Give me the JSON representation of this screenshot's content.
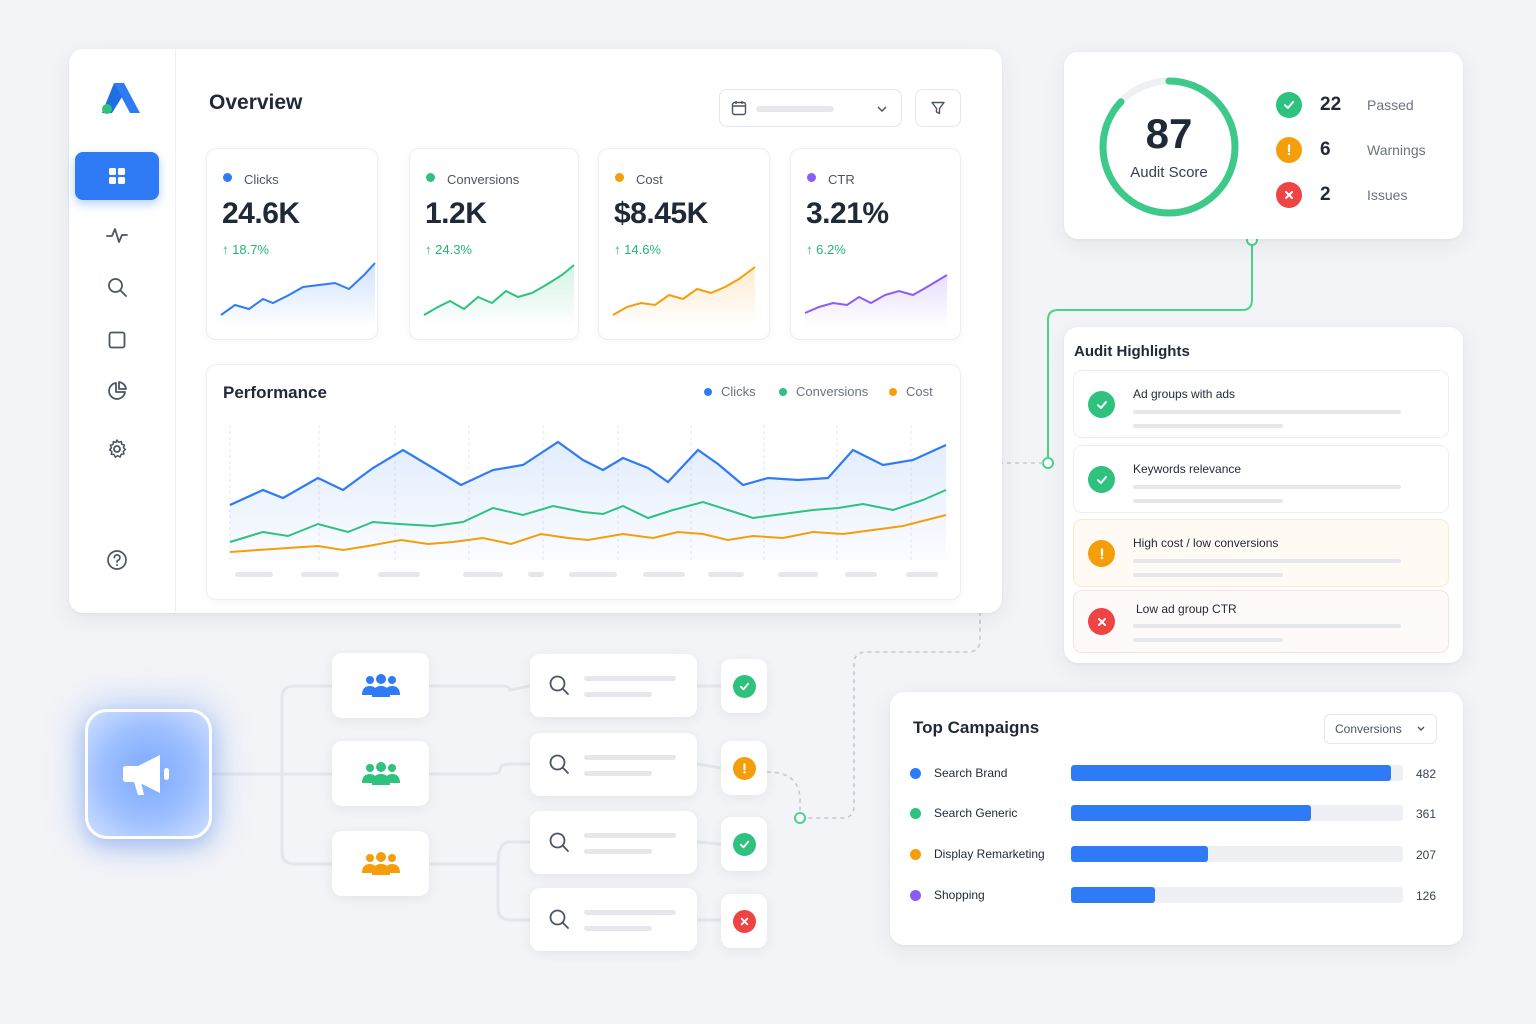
{
  "overview": {
    "title": "Overview",
    "metrics": [
      {
        "label": "Clicks",
        "value": "24.6K",
        "change": "18.7%",
        "color": "#2f7bf5"
      },
      {
        "label": "Conversions",
        "value": "1.2K",
        "change": "24.3%",
        "color": "#2ec27e"
      },
      {
        "label": "Cost",
        "value": "$8.45K",
        "change": "14.6%",
        "color": "#f59e0b"
      },
      {
        "label": "CTR",
        "value": "3.21%",
        "change": "6.2%",
        "color": "#8b5cf6"
      }
    ]
  },
  "performance": {
    "title": "Performance",
    "legend": [
      {
        "label": "Clicks",
        "color": "#2f7bf5"
      },
      {
        "label": "Conversions",
        "color": "#2ec27e"
      },
      {
        "label": "Cost",
        "color": "#f59e0b"
      }
    ]
  },
  "audit_score": {
    "score": "87",
    "label": "Audit Score",
    "score_fraction": 0.87,
    "stats": [
      {
        "count": "22",
        "label": "Passed",
        "status": "pass",
        "color": "#2ec27e"
      },
      {
        "count": "6",
        "label": "Warnings",
        "status": "warn",
        "color": "#f59e0b"
      },
      {
        "count": "2",
        "label": "Issues",
        "status": "error",
        "color": "#ef4444"
      }
    ]
  },
  "audit_highlights": {
    "title": "Audit Highlights",
    "items": [
      {
        "label": "Ad groups with ads",
        "status": "pass"
      },
      {
        "label": "Keywords relevance",
        "status": "pass"
      },
      {
        "label": "High cost / low conversions",
        "status": "warn"
      },
      {
        "label": "Low ad group CTR",
        "status": "error"
      }
    ]
  },
  "top_campaigns": {
    "title": "Top Campaigns",
    "select_value": "Conversions",
    "max": 500,
    "rows": [
      {
        "name": "Search Brand",
        "value": 482,
        "value_label": "482",
        "color": "#2f7bf5"
      },
      {
        "name": "Search Generic",
        "value": 361,
        "value_label": "361",
        "color": "#2ec27e"
      },
      {
        "name": "Display Remarketing",
        "value": 207,
        "value_label": "207",
        "color": "#f59e0b"
      },
      {
        "name": "Shopping",
        "value": 126,
        "value_label": "126",
        "color": "#8b5cf6"
      }
    ]
  },
  "flow": {
    "groups": [
      {
        "icon": "users-icon",
        "color": "#2f7bf5"
      },
      {
        "icon": "users-icon",
        "color": "#2ec27e"
      },
      {
        "icon": "users-icon",
        "color": "#f59e0b"
      }
    ],
    "statuses": [
      "pass",
      "warn",
      "pass",
      "error"
    ]
  },
  "icons": {
    "sidebar": [
      "dashboard-icon",
      "activity-icon",
      "search-icon",
      "square-icon",
      "pie-chart-icon",
      "gear-icon",
      "help-icon"
    ]
  }
}
